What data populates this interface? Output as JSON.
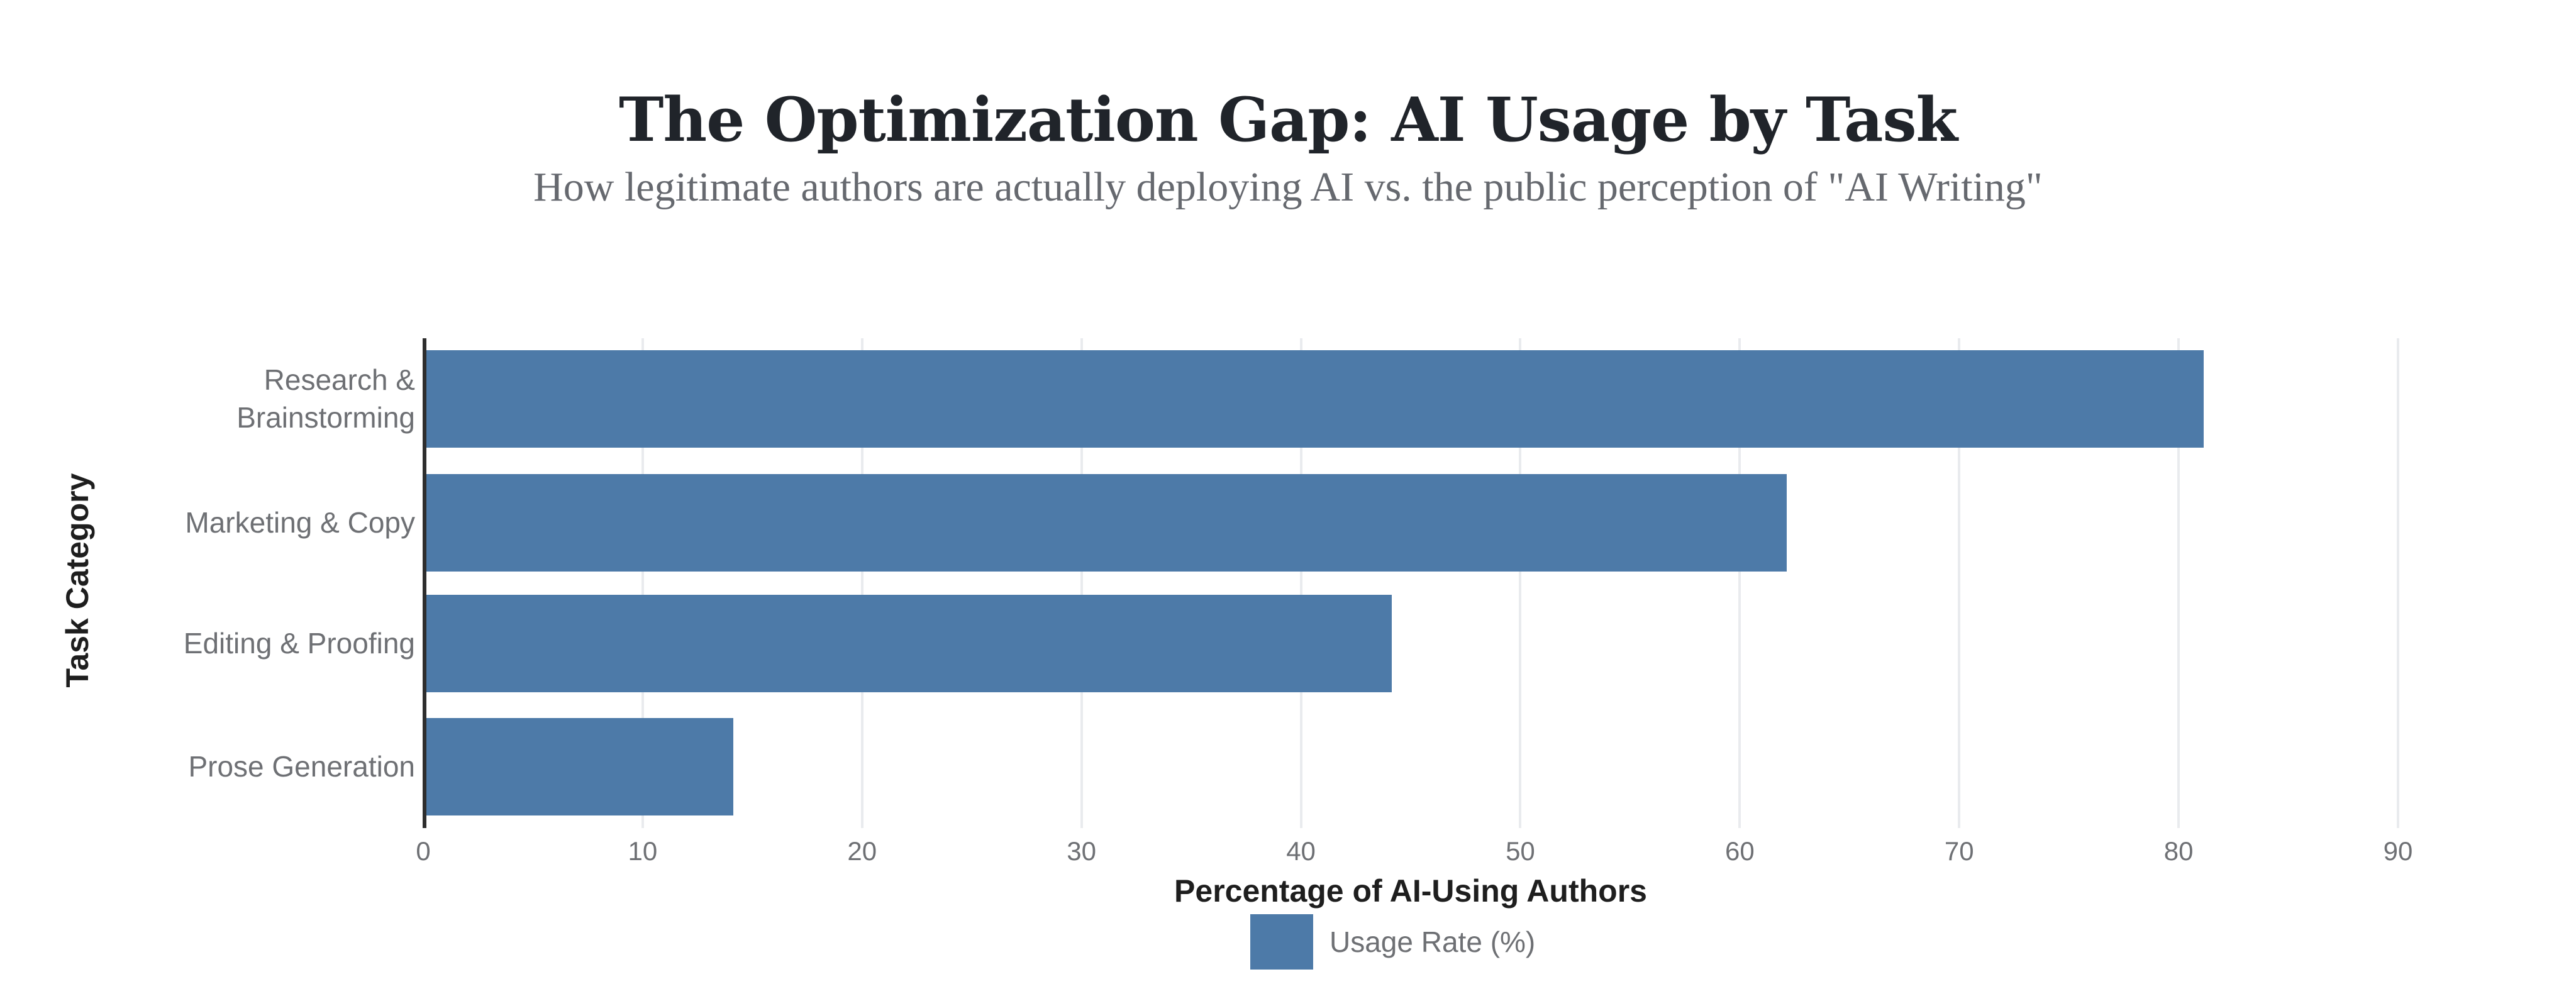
{
  "title": "The Optimization Gap: AI Usage by Task",
  "subtitle": "How legitimate authors are actually deploying AI vs. the public perception of \"AI Writing\"",
  "chart_data": {
    "type": "bar",
    "orientation": "horizontal",
    "title": "The Optimization Gap: AI Usage by Task",
    "subtitle": "How legitimate authors are actually deploying AI vs. the public perception of \"AI Writing\"",
    "categories": [
      "Research & Brainstorming",
      "Marketing & Copy",
      "Editing & Proofing",
      "Prose Generation"
    ],
    "values": [
      81,
      62,
      44,
      14
    ],
    "series_name": "Usage Rate (%)",
    "xlabel": "Percentage of AI-Using Authors",
    "ylabel": "Task Category",
    "xlim": [
      0,
      90
    ],
    "xticks": [
      0,
      10,
      20,
      30,
      40,
      50,
      60,
      70,
      80,
      90
    ],
    "grid": "vertical-only",
    "legend_position": "bottom-center"
  },
  "colors": {
    "background": "#ffffff",
    "bar": "#4d7aa8",
    "axis_line": "#2e2e2e",
    "gridline": "#e9ebee",
    "title_text": "#20242a",
    "subtitle_text": "#66696f",
    "label_text": "#6e7074",
    "axis_title_text": "#1e1e1e"
  }
}
